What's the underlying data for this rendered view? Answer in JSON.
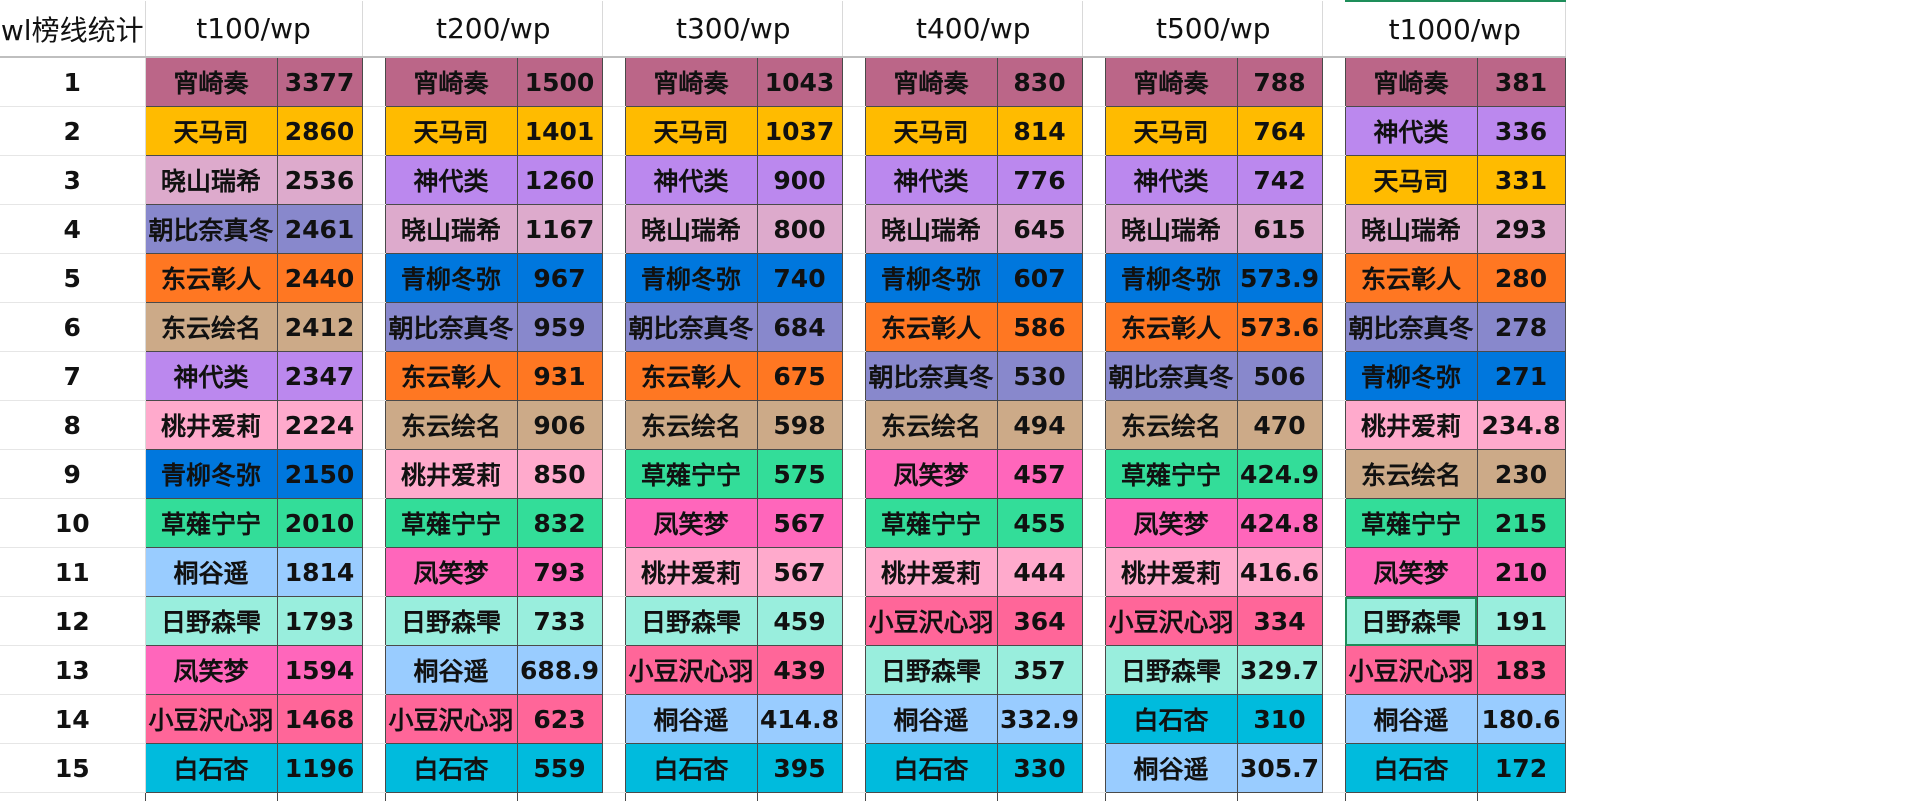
{
  "sheet": {
    "corner_header": "wl榜线统计",
    "selected_cell": {
      "block": 5,
      "row": 11,
      "field": "name"
    },
    "selected_header_block": 5,
    "blocks": [
      {
        "header": "t100/wp",
        "rows": [
          {
            "name": "宵崎奏",
            "value": "3377"
          },
          {
            "name": "天马司",
            "value": "2860"
          },
          {
            "name": "晓山瑞希",
            "value": "2536"
          },
          {
            "name": "朝比奈真冬",
            "value": "2461"
          },
          {
            "name": "东云彰人",
            "value": "2440"
          },
          {
            "name": "东云绘名",
            "value": "2412"
          },
          {
            "name": "神代类",
            "value": "2347"
          },
          {
            "name": "桃井爱莉",
            "value": "2224"
          },
          {
            "name": "青柳冬弥",
            "value": "2150"
          },
          {
            "name": "草薙宁宁",
            "value": "2010"
          },
          {
            "name": "桐谷遥",
            "value": "1814"
          },
          {
            "name": "日野森雫",
            "value": "1793"
          },
          {
            "name": "凤笑梦",
            "value": "1594"
          },
          {
            "name": "小豆沢心羽",
            "value": "1468"
          },
          {
            "name": "白石杏",
            "value": "1196"
          }
        ]
      },
      {
        "header": "t200/wp",
        "rows": [
          {
            "name": "宵崎奏",
            "value": "1500"
          },
          {
            "name": "天马司",
            "value": "1401"
          },
          {
            "name": "神代类",
            "value": "1260"
          },
          {
            "name": "晓山瑞希",
            "value": "1167"
          },
          {
            "name": "青柳冬弥",
            "value": "967"
          },
          {
            "name": "朝比奈真冬",
            "value": "959"
          },
          {
            "name": "东云彰人",
            "value": "931"
          },
          {
            "name": "东云绘名",
            "value": "906"
          },
          {
            "name": "桃井爱莉",
            "value": "850"
          },
          {
            "name": "草薙宁宁",
            "value": "832"
          },
          {
            "name": "凤笑梦",
            "value": "793"
          },
          {
            "name": "日野森雫",
            "value": "733"
          },
          {
            "name": "桐谷遥",
            "value": "688.9"
          },
          {
            "name": "小豆沢心羽",
            "value": "623"
          },
          {
            "name": "白石杏",
            "value": "559"
          }
        ]
      },
      {
        "header": "t300/wp",
        "rows": [
          {
            "name": "宵崎奏",
            "value": "1043"
          },
          {
            "name": "天马司",
            "value": "1037"
          },
          {
            "name": "神代类",
            "value": "900"
          },
          {
            "name": "晓山瑞希",
            "value": "800"
          },
          {
            "name": "青柳冬弥",
            "value": "740"
          },
          {
            "name": "朝比奈真冬",
            "value": "684"
          },
          {
            "name": "东云彰人",
            "value": "675"
          },
          {
            "name": "东云绘名",
            "value": "598"
          },
          {
            "name": "草薙宁宁",
            "value": "575"
          },
          {
            "name": "凤笑梦",
            "value": "567"
          },
          {
            "name": "桃井爱莉",
            "value": "567"
          },
          {
            "name": "日野森雫",
            "value": "459"
          },
          {
            "name": "小豆沢心羽",
            "value": "439"
          },
          {
            "name": "桐谷遥",
            "value": "414.8"
          },
          {
            "name": "白石杏",
            "value": "395"
          }
        ]
      },
      {
        "header": "t400/wp",
        "rows": [
          {
            "name": "宵崎奏",
            "value": "830"
          },
          {
            "name": "天马司",
            "value": "814"
          },
          {
            "name": "神代类",
            "value": "776"
          },
          {
            "name": "晓山瑞希",
            "value": "645"
          },
          {
            "name": "青柳冬弥",
            "value": "607"
          },
          {
            "name": "东云彰人",
            "value": "586"
          },
          {
            "name": "朝比奈真冬",
            "value": "530"
          },
          {
            "name": "东云绘名",
            "value": "494"
          },
          {
            "name": "凤笑梦",
            "value": "457"
          },
          {
            "name": "草薙宁宁",
            "value": "455"
          },
          {
            "name": "桃井爱莉",
            "value": "444"
          },
          {
            "name": "小豆沢心羽",
            "value": "364"
          },
          {
            "name": "日野森雫",
            "value": "357"
          },
          {
            "name": "桐谷遥",
            "value": "332.9"
          },
          {
            "name": "白石杏",
            "value": "330"
          }
        ]
      },
      {
        "header": "t500/wp",
        "rows": [
          {
            "name": "宵崎奏",
            "value": "788"
          },
          {
            "name": "天马司",
            "value": "764"
          },
          {
            "name": "神代类",
            "value": "742"
          },
          {
            "name": "晓山瑞希",
            "value": "615"
          },
          {
            "name": "青柳冬弥",
            "value": "573.9"
          },
          {
            "name": "东云彰人",
            "value": "573.6"
          },
          {
            "name": "朝比奈真冬",
            "value": "506"
          },
          {
            "name": "东云绘名",
            "value": "470"
          },
          {
            "name": "草薙宁宁",
            "value": "424.9"
          },
          {
            "name": "凤笑梦",
            "value": "424.8"
          },
          {
            "name": "桃井爱莉",
            "value": "416.6"
          },
          {
            "name": "小豆沢心羽",
            "value": "334"
          },
          {
            "name": "日野森雫",
            "value": "329.7"
          },
          {
            "name": "白石杏",
            "value": "310"
          },
          {
            "name": "桐谷遥",
            "value": "305.7"
          }
        ]
      },
      {
        "header": "t1000/wp",
        "rows": [
          {
            "name": "宵崎奏",
            "value": "381"
          },
          {
            "name": "神代类",
            "value": "336"
          },
          {
            "name": "天马司",
            "value": "331"
          },
          {
            "name": "晓山瑞希",
            "value": "293"
          },
          {
            "name": "东云彰人",
            "value": "280"
          },
          {
            "name": "朝比奈真冬",
            "value": "278"
          },
          {
            "name": "青柳冬弥",
            "value": "271"
          },
          {
            "name": "桃井爱莉",
            "value": "234.8"
          },
          {
            "name": "东云绘名",
            "value": "230"
          },
          {
            "name": "草薙宁宁",
            "value": "215"
          },
          {
            "name": "凤笑梦",
            "value": "210"
          },
          {
            "name": "日野森雫",
            "value": "191"
          },
          {
            "name": "小豆沢心羽",
            "value": "183"
          },
          {
            "name": "桐谷遥",
            "value": "180.6"
          },
          {
            "name": "白石杏",
            "value": "172"
          }
        ]
      }
    ]
  },
  "character_colors": {
    "宵崎奏": "#bb6688",
    "天马司": "#ffbb00",
    "晓山瑞希": "#ddaacc",
    "朝比奈真冬": "#8888cc",
    "东云彰人": "#ff7722",
    "东云绘名": "#ccaa88",
    "神代类": "#bb88ee",
    "桃井爱莉": "#ffaacc",
    "青柳冬弥": "#0077dd",
    "草薙宁宁": "#33dd99",
    "桐谷遥": "#99ccff",
    "日野森雫": "#99eedd",
    "凤笑梦": "#ff66bb",
    "小豆沢心羽": "#ff6699",
    "白石杏": "#00bbdd"
  }
}
